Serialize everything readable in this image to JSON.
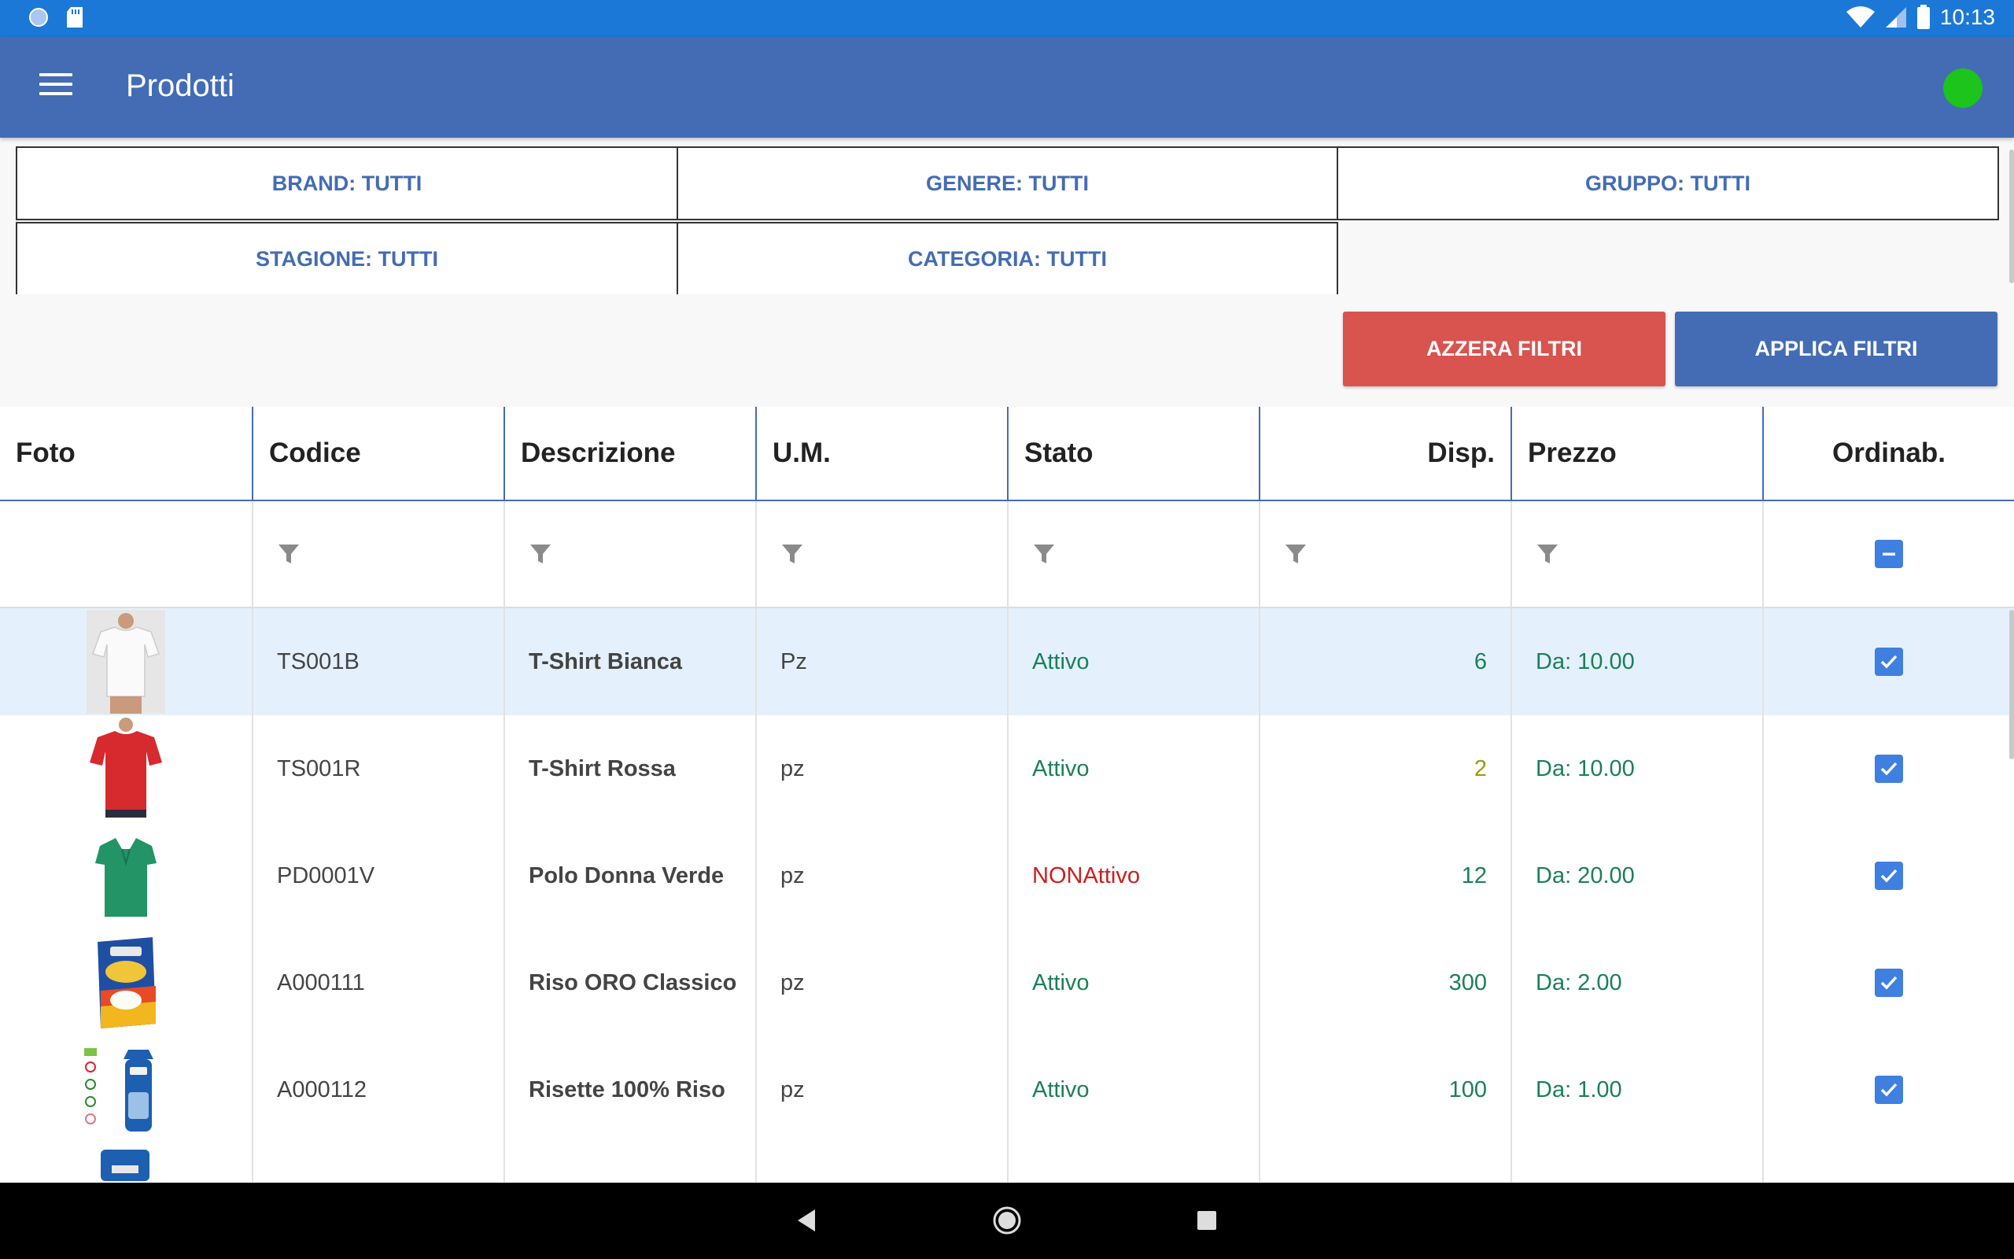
{
  "status_bar": {
    "time": "10:13"
  },
  "app_bar": {
    "title": "Prodotti"
  },
  "filters": {
    "brand": "BRAND: TUTTI",
    "genere": "GENERE: TUTTI",
    "gruppo": "GRUPPO: TUTTI",
    "stagione": "STAGIONE: TUTTI",
    "categoria": "CATEGORIA: TUTTI"
  },
  "actions": {
    "reset_label": "AZZERA FILTRI",
    "apply_label": "APPLICA FILTRI",
    "reset_color": "#d9534f",
    "apply_color": "#436cb4"
  },
  "table": {
    "columns": [
      "Foto",
      "Codice",
      "Descrizione",
      "U.M.",
      "Stato",
      "Disp.",
      "Prezzo",
      "Ordinab."
    ],
    "rows": [
      {
        "code": "TS001B",
        "description": "T-Shirt Bianca",
        "um": "Pz",
        "stato": "Attivo",
        "disp": "6",
        "price": "Da: 10.00",
        "photo": "white-tshirt"
      },
      {
        "code": "TS001R",
        "description": "T-Shirt Rossa",
        "um": "pz",
        "stato": "Attivo",
        "disp": "2",
        "price": "Da: 10.00",
        "photo": "red-tshirt"
      },
      {
        "code": "PD0001V",
        "description": "Polo Donna Verde",
        "um": "pz",
        "stato": "NONAttivo",
        "disp": "12",
        "price": "Da: 20.00",
        "photo": "green-polo"
      },
      {
        "code": "A000111",
        "description": "Riso ORO Classico",
        "um": "pz",
        "stato": "Attivo",
        "disp": "300",
        "price": "Da: 2.00",
        "photo": "rice-box"
      },
      {
        "code": "A000112",
        "description": "Risette 100% Riso",
        "um": "pz",
        "stato": "Attivo",
        "disp": "100",
        "price": "Da: 1.00",
        "photo": "rice-cakes"
      }
    ]
  },
  "colors": {
    "status_bar": "#1c78d6",
    "app_bar": "#436cb4",
    "active_green": "#1b7f58",
    "inactive_red": "#cc1f1f",
    "online_indicator": "#1cc41c"
  }
}
